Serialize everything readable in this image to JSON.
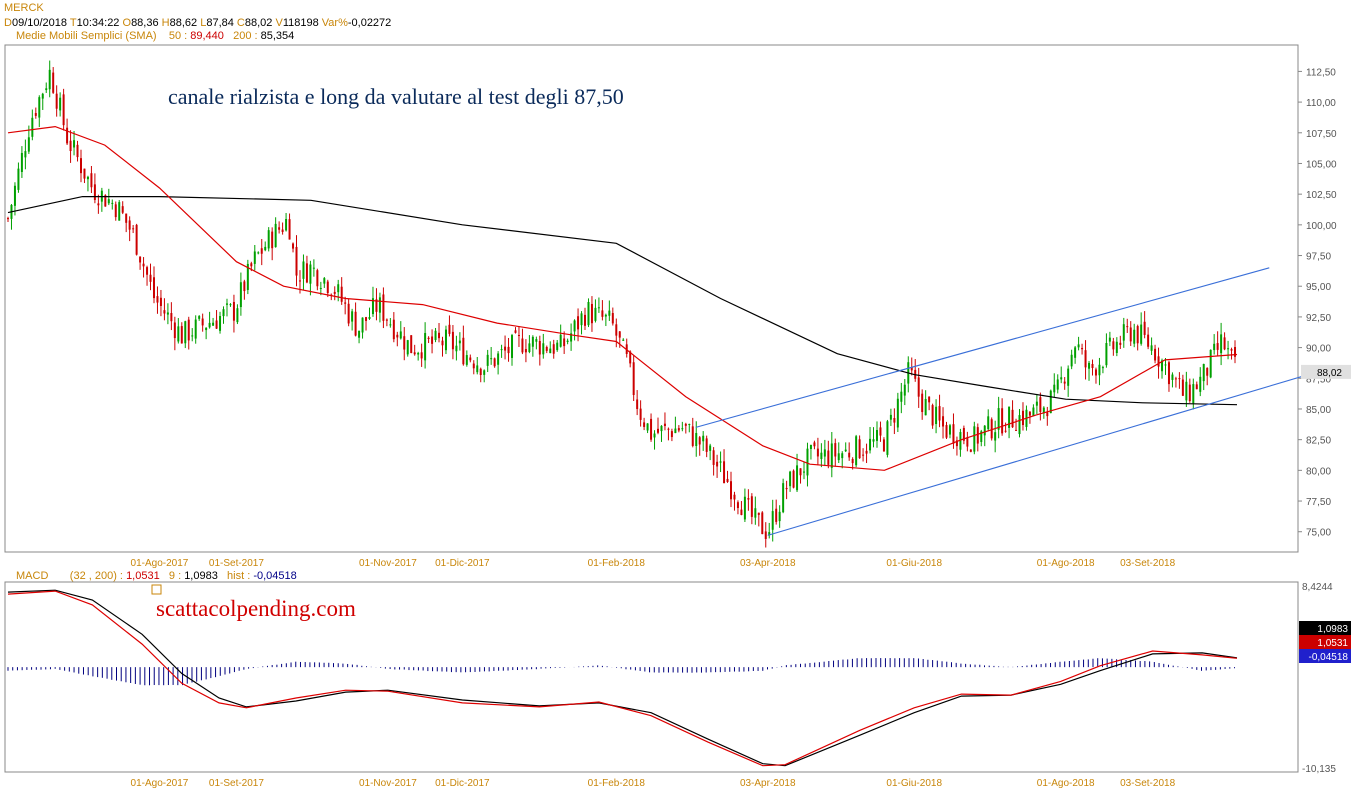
{
  "header": {
    "ticker": "MERCK",
    "d_label": "D",
    "date": "09/10/2018",
    "t_label": "T",
    "time": "10:34:22",
    "o_label": "O",
    "open": "88,36",
    "h_label": "H",
    "high": "88,62",
    "l_label": "L",
    "low": "87,84",
    "c_label": "C",
    "close": "88,02",
    "v_label": "V",
    "volume": "118198",
    "var_label": "Var%",
    "var": "-0,02272"
  },
  "sma_legend": {
    "label": "Medie Mobili Semplici (SMA)",
    "p1_label": "50 :",
    "p1_value": "89,440",
    "p2_label": "200 :",
    "p2_value": "85,354"
  },
  "macd_legend": {
    "label": "MACD",
    "params": "(32 , 200) :",
    "macd_value": "1,0531",
    "signal_label": "9 :",
    "signal_value": "1,0983",
    "hist_label": "hist :",
    "hist_value": "-0,04518"
  },
  "annotations": {
    "main": "canale rialzista e long da valutare al test degli 87,50",
    "site": "scattacolpending.com"
  },
  "colors": {
    "up_candle": "#00a000",
    "down_candle": "#cc0000",
    "sma50": "#dd0000",
    "sma200": "#000000",
    "channel": "#3a6fd8",
    "macd_line": "#000000",
    "signal_line": "#dd0000",
    "histogram": "#00007f"
  },
  "chart_data": [
    {
      "type": "line",
      "title": "",
      "price_axis": {
        "ticks": [
          "112,50",
          "110,00",
          "107,50",
          "105,00",
          "102,50",
          "100,00",
          "97,50",
          "95,00",
          "92,50",
          "90,00",
          "87,50",
          "85,00",
          "82,50",
          "80,00",
          "77,50",
          "75,00"
        ],
        "range": [
          74,
          114
        ],
        "last_price_label": "88,02"
      },
      "x_axis_labels": [
        "01-Ago-2017",
        "01-Set-2017",
        "01-Nov-2017",
        "01-Dic-2017",
        "01-Feb-2018",
        "03-Apr-2018",
        "01-Giu-2018",
        "01-Ago-2018",
        "03-Set-2018"
      ],
      "x_range": [
        "2017-06-01",
        "2018-10-09"
      ],
      "price_path": [
        [
          "2017-06-01",
          100.5
        ],
        [
          "2017-06-10",
          108.5
        ],
        [
          "2017-06-18",
          112.5
        ],
        [
          "2017-06-25",
          107
        ],
        [
          "2017-07-05",
          103
        ],
        [
          "2017-07-15",
          101.5
        ],
        [
          "2017-07-22",
          99
        ],
        [
          "2017-07-30",
          94
        ],
        [
          "2017-08-10",
          91
        ],
        [
          "2017-08-20",
          92
        ],
        [
          "2017-08-31",
          93
        ],
        [
          "2017-09-08",
          97
        ],
        [
          "2017-09-15",
          99
        ],
        [
          "2017-09-22",
          100.5
        ],
        [
          "2017-09-25",
          96
        ],
        [
          "2017-10-01",
          96.5
        ],
        [
          "2017-10-10",
          95
        ],
        [
          "2017-10-20",
          91.5
        ],
        [
          "2017-10-28",
          93.5
        ],
        [
          "2017-11-10",
          90
        ],
        [
          "2017-11-25",
          90.5
        ],
        [
          "2017-12-10",
          88.5
        ],
        [
          "2017-12-25",
          90.5
        ],
        [
          "2018-01-10",
          90
        ],
        [
          "2018-01-20",
          93
        ],
        [
          "2018-01-30",
          92
        ],
        [
          "2018-02-05",
          89
        ],
        [
          "2018-02-10",
          85
        ],
        [
          "2018-02-15",
          83
        ],
        [
          "2018-02-28",
          83.5
        ],
        [
          "2018-03-08",
          82
        ],
        [
          "2018-03-20",
          78.5
        ],
        [
          "2018-03-28",
          76
        ],
        [
          "2018-04-03",
          75
        ],
        [
          "2018-04-10",
          78.5
        ],
        [
          "2018-04-20",
          81
        ],
        [
          "2018-05-05",
          81.5
        ],
        [
          "2018-05-20",
          82.5
        ],
        [
          "2018-05-30",
          88
        ],
        [
          "2018-06-03",
          86
        ],
        [
          "2018-06-12",
          83.5
        ],
        [
          "2018-06-25",
          82.5
        ],
        [
          "2018-07-05",
          84
        ],
        [
          "2018-07-18",
          84.5
        ],
        [
          "2018-07-28",
          86
        ],
        [
          "2018-08-05",
          90.5
        ],
        [
          "2018-08-10",
          88
        ],
        [
          "2018-08-20",
          90
        ],
        [
          "2018-08-28",
          91.5
        ],
        [
          "2018-09-05",
          90
        ],
        [
          "2018-09-10",
          88.5
        ],
        [
          "2018-09-18",
          86
        ],
        [
          "2018-09-25",
          87.5
        ],
        [
          "2018-10-03",
          90.5
        ],
        [
          "2018-10-09",
          88.02
        ]
      ],
      "series": [
        {
          "name": "50",
          "values": [
            [
              "2017-06-01",
              107.5
            ],
            [
              "2017-06-20",
              108
            ],
            [
              "2017-07-10",
              106.5
            ],
            [
              "2017-08-01",
              103
            ],
            [
              "2017-09-01",
              97
            ],
            [
              "2017-09-20",
              95
            ],
            [
              "2017-10-15",
              94
            ],
            [
              "2017-11-15",
              93.5
            ],
            [
              "2017-12-15",
              92
            ],
            [
              "2018-01-15",
              91
            ],
            [
              "2018-02-01",
              90.5
            ],
            [
              "2018-03-01",
              86
            ],
            [
              "2018-04-01",
              82
            ],
            [
              "2018-04-20",
              80.5
            ],
            [
              "2018-05-20",
              80
            ],
            [
              "2018-06-20",
              82.5
            ],
            [
              "2018-07-20",
              84.5
            ],
            [
              "2018-08-15",
              86
            ],
            [
              "2018-09-10",
              89
            ],
            [
              "2018-10-09",
              89.44
            ]
          ]
        },
        {
          "name": "200",
          "values": [
            [
              "2017-06-01",
              101
            ],
            [
              "2017-07-01",
              102.3
            ],
            [
              "2017-08-01",
              102.3
            ],
            [
              "2017-10-01",
              102
            ],
            [
              "2017-12-01",
              100
            ],
            [
              "2018-02-01",
              98.5
            ],
            [
              "2018-03-15",
              94
            ],
            [
              "2018-05-01",
              89.5
            ],
            [
              "2018-06-01",
              87.8
            ],
            [
              "2018-07-01",
              86.8
            ],
            [
              "2018-08-01",
              85.8
            ],
            [
              "2018-09-01",
              85.5
            ],
            [
              "2018-10-09",
              85.35
            ]
          ]
        }
      ],
      "trendlines": [
        {
          "from": [
            "2018-03-05",
            83.5
          ],
          "to": [
            "2018-10-22",
            96.5
          ]
        },
        {
          "from": [
            "2018-04-03",
            74.7
          ],
          "to": [
            "2018-11-10",
            88
          ]
        }
      ]
    },
    {
      "type": "line",
      "title": "MACD",
      "axis_ticks": [
        "8,4244",
        "-10,135"
      ],
      "range": [
        -10.135,
        8.4244
      ],
      "last_value_labels": [
        "1,0983",
        "1,0531",
        "-0,04518"
      ],
      "series": [
        {
          "name": "MACD",
          "values": [
            [
              "2017-06-01",
              7.6
            ],
            [
              "2017-06-20",
              7.9
            ],
            [
              "2017-07-05",
              6.5
            ],
            [
              "2017-07-25",
              2.5
            ],
            [
              "2017-08-10",
              -1.5
            ],
            [
              "2017-08-25",
              -3.5
            ],
            [
              "2017-09-05",
              -4.0
            ],
            [
              "2017-09-25",
              -3.0
            ],
            [
              "2017-10-15",
              -2.2
            ],
            [
              "2017-11-01",
              -2.3
            ],
            [
              "2017-12-01",
              -3.5
            ],
            [
              "2018-01-01",
              -3.9
            ],
            [
              "2018-01-25",
              -3.4
            ],
            [
              "2018-02-15",
              -4.8
            ],
            [
              "2018-03-10",
              -7.5
            ],
            [
              "2018-04-01",
              -9.9
            ],
            [
              "2018-04-10",
              -9.8
            ],
            [
              "2018-05-10",
              -6.3
            ],
            [
              "2018-06-01",
              -4.0
            ],
            [
              "2018-06-20",
              -2.6
            ],
            [
              "2018-07-10",
              -2.7
            ],
            [
              "2018-07-30",
              -1.3
            ],
            [
              "2018-08-15",
              0.3
            ],
            [
              "2018-09-05",
              1.8
            ],
            [
              "2018-09-25",
              1.4
            ],
            [
              "2018-10-09",
              1.0531
            ]
          ]
        },
        {
          "name": "9",
          "values": [
            [
              "2017-06-01",
              7.8
            ],
            [
              "2017-06-20",
              8.0
            ],
            [
              "2017-07-05",
              7.0
            ],
            [
              "2017-07-25",
              3.5
            ],
            [
              "2017-08-10",
              -0.5
            ],
            [
              "2017-08-25",
              -3.0
            ],
            [
              "2017-09-05",
              -3.9
            ],
            [
              "2017-09-25",
              -3.3
            ],
            [
              "2017-10-15",
              -2.4
            ],
            [
              "2017-11-01",
              -2.2
            ],
            [
              "2017-12-01",
              -3.2
            ],
            [
              "2018-01-01",
              -3.8
            ],
            [
              "2018-01-25",
              -3.5
            ],
            [
              "2018-02-15",
              -4.5
            ],
            [
              "2018-03-10",
              -7.2
            ],
            [
              "2018-04-01",
              -9.7
            ],
            [
              "2018-04-10",
              -9.9
            ],
            [
              "2018-05-10",
              -6.8
            ],
            [
              "2018-06-01",
              -4.5
            ],
            [
              "2018-06-20",
              -2.8
            ],
            [
              "2018-07-10",
              -2.7
            ],
            [
              "2018-07-30",
              -1.6
            ],
            [
              "2018-08-15",
              -0.2
            ],
            [
              "2018-09-05",
              1.5
            ],
            [
              "2018-09-25",
              1.6
            ],
            [
              "2018-10-09",
              1.0983
            ]
          ]
        }
      ]
    }
  ]
}
